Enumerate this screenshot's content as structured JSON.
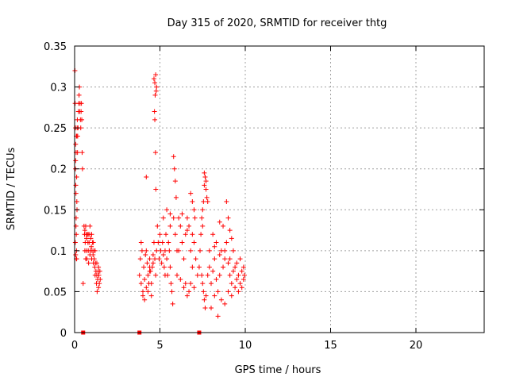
{
  "chart_data": {
    "type": "scatter",
    "title": "Day 315 of 2020, SRMTID for receiver thtg",
    "xlabel": "GPS time / hours",
    "ylabel": "SRMTID / TECUs",
    "xlim": [
      0,
      24
    ],
    "ylim": [
      0,
      0.35
    ],
    "x_ticks": [
      0,
      5,
      10,
      15,
      20
    ],
    "y_ticks": [
      0,
      0.05,
      0.1,
      0.15,
      0.2,
      0.25,
      0.3,
      0.35
    ],
    "x_tick_labels": [
      "0",
      "5",
      "10",
      "15",
      "20"
    ],
    "y_tick_labels": [
      "0",
      "0.05",
      "0.1",
      "0.15",
      "0.2",
      "0.25",
      "0.3",
      "0.35"
    ],
    "grid": true,
    "marker": "plus",
    "color": "#ff0000",
    "baseline_markers_x": [
      0.5,
      3.8,
      7.3
    ],
    "series": [
      {
        "values": [
          [
            0.02,
            0.32
          ],
          [
            0.03,
            0.28
          ],
          [
            0.05,
            0.25
          ],
          [
            0.06,
            0.21
          ],
          [
            0.07,
            0.18
          ],
          [
            0.08,
            0.17
          ],
          [
            0.09,
            0.14
          ],
          [
            0.1,
            0.12
          ],
          [
            0.11,
            0.1
          ],
          [
            0.12,
            0.09
          ],
          [
            0.05,
            0.2
          ],
          [
            0.06,
            0.23
          ],
          [
            0.13,
            0.24
          ],
          [
            0.15,
            0.25
          ],
          [
            0.16,
            0.26
          ],
          [
            0.18,
            0.24
          ],
          [
            0.2,
            0.25
          ],
          [
            0.22,
            0.27
          ],
          [
            0.24,
            0.28
          ],
          [
            0.26,
            0.29
          ],
          [
            0.28,
            0.3
          ],
          [
            0.3,
            0.27
          ],
          [
            0.32,
            0.28
          ],
          [
            0.34,
            0.26
          ],
          [
            0.36,
            0.25
          ],
          [
            0.38,
            0.27
          ],
          [
            0.4,
            0.28
          ],
          [
            0.42,
            0.26
          ],
          [
            0.44,
            0.22
          ],
          [
            0.46,
            0.2
          ],
          [
            0.09,
            0.22
          ],
          [
            0.1,
            0.24
          ],
          [
            0.12,
            0.19
          ],
          [
            0.14,
            0.15
          ],
          [
            0.08,
            0.13
          ],
          [
            0.04,
            0.11
          ],
          [
            0.06,
            0.095
          ],
          [
            0.1,
            0.09
          ],
          [
            0.13,
            0.16
          ],
          [
            0.17,
            0.22
          ],
          [
            0.5,
            0.06
          ],
          [
            0.55,
            0.13
          ],
          [
            0.58,
            0.12
          ],
          [
            0.6,
            0.125
          ],
          [
            0.62,
            0.11
          ],
          [
            0.65,
            0.13
          ],
          [
            0.68,
            0.12
          ],
          [
            0.7,
            0.1
          ],
          [
            0.72,
            0.09
          ],
          [
            0.75,
            0.12
          ],
          [
            0.78,
            0.11
          ],
          [
            0.8,
            0.1
          ],
          [
            0.82,
            0.085
          ],
          [
            0.85,
            0.11
          ],
          [
            0.88,
            0.12
          ],
          [
            0.9,
            0.095
          ],
          [
            0.92,
            0.1
          ],
          [
            0.95,
            0.115
          ],
          [
            0.98,
            0.105
          ],
          [
            1.0,
            0.09
          ],
          [
            1.02,
            0.1
          ],
          [
            1.05,
            0.11
          ],
          [
            1.08,
            0.095
          ],
          [
            1.1,
            0.085
          ],
          [
            1.12,
            0.1
          ],
          [
            1.15,
            0.09
          ],
          [
            1.18,
            0.08
          ],
          [
            1.2,
            0.07
          ],
          [
            1.22,
            0.085
          ],
          [
            1.25,
            0.075
          ],
          [
            1.28,
            0.06
          ],
          [
            1.3,
            0.07
          ],
          [
            1.32,
            0.05
          ],
          [
            1.35,
            0.065
          ],
          [
            1.38,
            0.075
          ],
          [
            1.4,
            0.055
          ],
          [
            1.42,
            0.07
          ],
          [
            1.45,
            0.06
          ],
          [
            1.48,
            0.075
          ],
          [
            1.5,
            0.065
          ],
          [
            0.6,
            0.1
          ],
          [
            0.7,
            0.115
          ],
          [
            0.8,
            0.12
          ],
          [
            0.9,
            0.13
          ],
          [
            1.0,
            0.12
          ],
          [
            1.1,
            0.11
          ],
          [
            1.2,
            0.1
          ],
          [
            1.3,
            0.085
          ],
          [
            1.4,
            0.08
          ],
          [
            0.65,
            0.09
          ],
          [
            3.8,
            0.07
          ],
          [
            3.85,
            0.09
          ],
          [
            3.9,
            0.06
          ],
          [
            3.95,
            0.1
          ],
          [
            4.0,
            0.05
          ],
          [
            4.05,
            0.08
          ],
          [
            4.1,
            0.065
          ],
          [
            4.15,
            0.095
          ],
          [
            4.2,
            0.055
          ],
          [
            4.25,
            0.085
          ],
          [
            4.3,
            0.07
          ],
          [
            4.35,
            0.06
          ],
          [
            4.4,
            0.09
          ],
          [
            4.45,
            0.075
          ],
          [
            4.5,
            0.06
          ],
          [
            4.55,
            0.08
          ],
          [
            4.6,
            0.095
          ],
          [
            4.65,
            0.11
          ],
          [
            4.7,
            0.09
          ],
          [
            4.75,
            0.07
          ],
          [
            4.0,
            0.045
          ],
          [
            4.1,
            0.04
          ],
          [
            4.3,
            0.05
          ],
          [
            4.5,
            0.045
          ],
          [
            3.9,
            0.11
          ],
          [
            4.2,
            0.1
          ],
          [
            4.4,
            0.075
          ],
          [
            4.6,
            0.085
          ],
          [
            4.2,
            0.19
          ],
          [
            4.4,
            0.08
          ],
          [
            4.65,
            0.31
          ],
          [
            4.7,
            0.305
          ],
          [
            4.75,
            0.315
          ],
          [
            4.78,
            0.295
          ],
          [
            4.72,
            0.29
          ],
          [
            4.68,
            0.27
          ],
          [
            4.74,
            0.22
          ],
          [
            4.76,
            0.175
          ],
          [
            4.8,
            0.3
          ],
          [
            4.7,
            0.26
          ],
          [
            4.8,
            0.1
          ],
          [
            4.85,
            0.13
          ],
          [
            4.9,
            0.11
          ],
          [
            4.95,
            0.09
          ],
          [
            5.0,
            0.12
          ],
          [
            5.05,
            0.1
          ],
          [
            5.1,
            0.085
          ],
          [
            5.15,
            0.11
          ],
          [
            5.2,
            0.095
          ],
          [
            5.25,
            0.08
          ],
          [
            5.3,
            0.1
          ],
          [
            5.35,
            0.12
          ],
          [
            5.4,
            0.09
          ],
          [
            5.45,
            0.07
          ],
          [
            5.5,
            0.11
          ],
          [
            5.55,
            0.1
          ],
          [
            5.6,
            0.08
          ],
          [
            5.65,
            0.06
          ],
          [
            5.7,
            0.05
          ],
          [
            5.75,
            0.035
          ],
          [
            5.2,
            0.14
          ],
          [
            5.4,
            0.15
          ],
          [
            5.6,
            0.145
          ],
          [
            5.8,
            0.14
          ],
          [
            5.9,
            0.12
          ],
          [
            6.0,
            0.1
          ],
          [
            6.1,
            0.14
          ],
          [
            6.2,
            0.13
          ],
          [
            6.3,
            0.11
          ],
          [
            6.4,
            0.09
          ],
          [
            6.5,
            0.12
          ],
          [
            6.6,
            0.14
          ],
          [
            6.7,
            0.13
          ],
          [
            6.8,
            0.1
          ],
          [
            6.9,
            0.08
          ],
          [
            7.0,
            0.11
          ],
          [
            7.1,
            0.09
          ],
          [
            7.2,
            0.07
          ],
          [
            6.5,
            0.06
          ],
          [
            6.7,
            0.05
          ],
          [
            6.0,
            0.07
          ],
          [
            6.2,
            0.065
          ],
          [
            6.4,
            0.055
          ],
          [
            6.6,
            0.045
          ],
          [
            6.8,
            0.06
          ],
          [
            7.0,
            0.055
          ],
          [
            5.8,
            0.215
          ],
          [
            5.85,
            0.2
          ],
          [
            5.9,
            0.185
          ],
          [
            5.95,
            0.165
          ],
          [
            6.8,
            0.17
          ],
          [
            7.0,
            0.15
          ],
          [
            7.05,
            0.14
          ],
          [
            6.9,
            0.16
          ],
          [
            6.6,
            0.125
          ],
          [
            6.3,
            0.145
          ],
          [
            5.6,
            0.13
          ],
          [
            5.3,
            0.07
          ],
          [
            6.1,
            0.1
          ],
          [
            6.9,
            0.12
          ],
          [
            7.3,
            0.08
          ],
          [
            7.35,
            0.1
          ],
          [
            7.4,
            0.12
          ],
          [
            7.45,
            0.14
          ],
          [
            7.5,
            0.15
          ],
          [
            7.55,
            0.16
          ],
          [
            7.6,
            0.18
          ],
          [
            7.65,
            0.19
          ],
          [
            7.7,
            0.175
          ],
          [
            7.75,
            0.165
          ],
          [
            7.6,
            0.195
          ],
          [
            7.7,
            0.185
          ],
          [
            7.8,
            0.16
          ],
          [
            7.5,
            0.13
          ],
          [
            7.45,
            0.07
          ],
          [
            7.5,
            0.06
          ],
          [
            7.55,
            0.05
          ],
          [
            7.6,
            0.04
          ],
          [
            7.65,
            0.03
          ],
          [
            7.7,
            0.045
          ],
          [
            7.8,
            0.07
          ],
          [
            7.9,
            0.08
          ],
          [
            8.0,
            0.06
          ],
          [
            8.1,
            0.075
          ],
          [
            8.2,
            0.09
          ],
          [
            8.3,
            0.065
          ],
          [
            8.4,
            0.05
          ],
          [
            8.5,
            0.07
          ],
          [
            8.6,
            0.1
          ],
          [
            8.7,
            0.08
          ],
          [
            8.8,
            0.09
          ],
          [
            8.9,
            0.11
          ],
          [
            9.0,
            0.085
          ],
          [
            9.1,
            0.07
          ],
          [
            9.2,
            0.06
          ],
          [
            9.3,
            0.075
          ],
          [
            9.4,
            0.055
          ],
          [
            9.5,
            0.065
          ],
          [
            9.6,
            0.07
          ],
          [
            9.7,
            0.06
          ],
          [
            9.8,
            0.075
          ],
          [
            9.9,
            0.065
          ],
          [
            9.95,
            0.07
          ],
          [
            8.0,
            0.03
          ],
          [
            8.2,
            0.045
          ],
          [
            8.4,
            0.02
          ],
          [
            8.6,
            0.04
          ],
          [
            8.8,
            0.035
          ],
          [
            9.0,
            0.05
          ],
          [
            9.2,
            0.045
          ],
          [
            8.1,
            0.12
          ],
          [
            8.3,
            0.11
          ],
          [
            8.5,
            0.135
          ],
          [
            8.7,
            0.13
          ],
          [
            8.9,
            0.16
          ],
          [
            9.1,
            0.125
          ],
          [
            9.3,
            0.1
          ],
          [
            9.5,
            0.085
          ],
          [
            9.7,
            0.09
          ],
          [
            9.9,
            0.08
          ],
          [
            7.9,
            0.1
          ],
          [
            8.2,
            0.105
          ],
          [
            8.5,
            0.095
          ],
          [
            8.8,
            0.1
          ],
          [
            9.1,
            0.09
          ],
          [
            9.4,
            0.08
          ],
          [
            9.6,
            0.05
          ],
          [
            9.8,
            0.055
          ],
          [
            9.0,
            0.14
          ],
          [
            9.2,
            0.115
          ]
        ]
      }
    ]
  }
}
